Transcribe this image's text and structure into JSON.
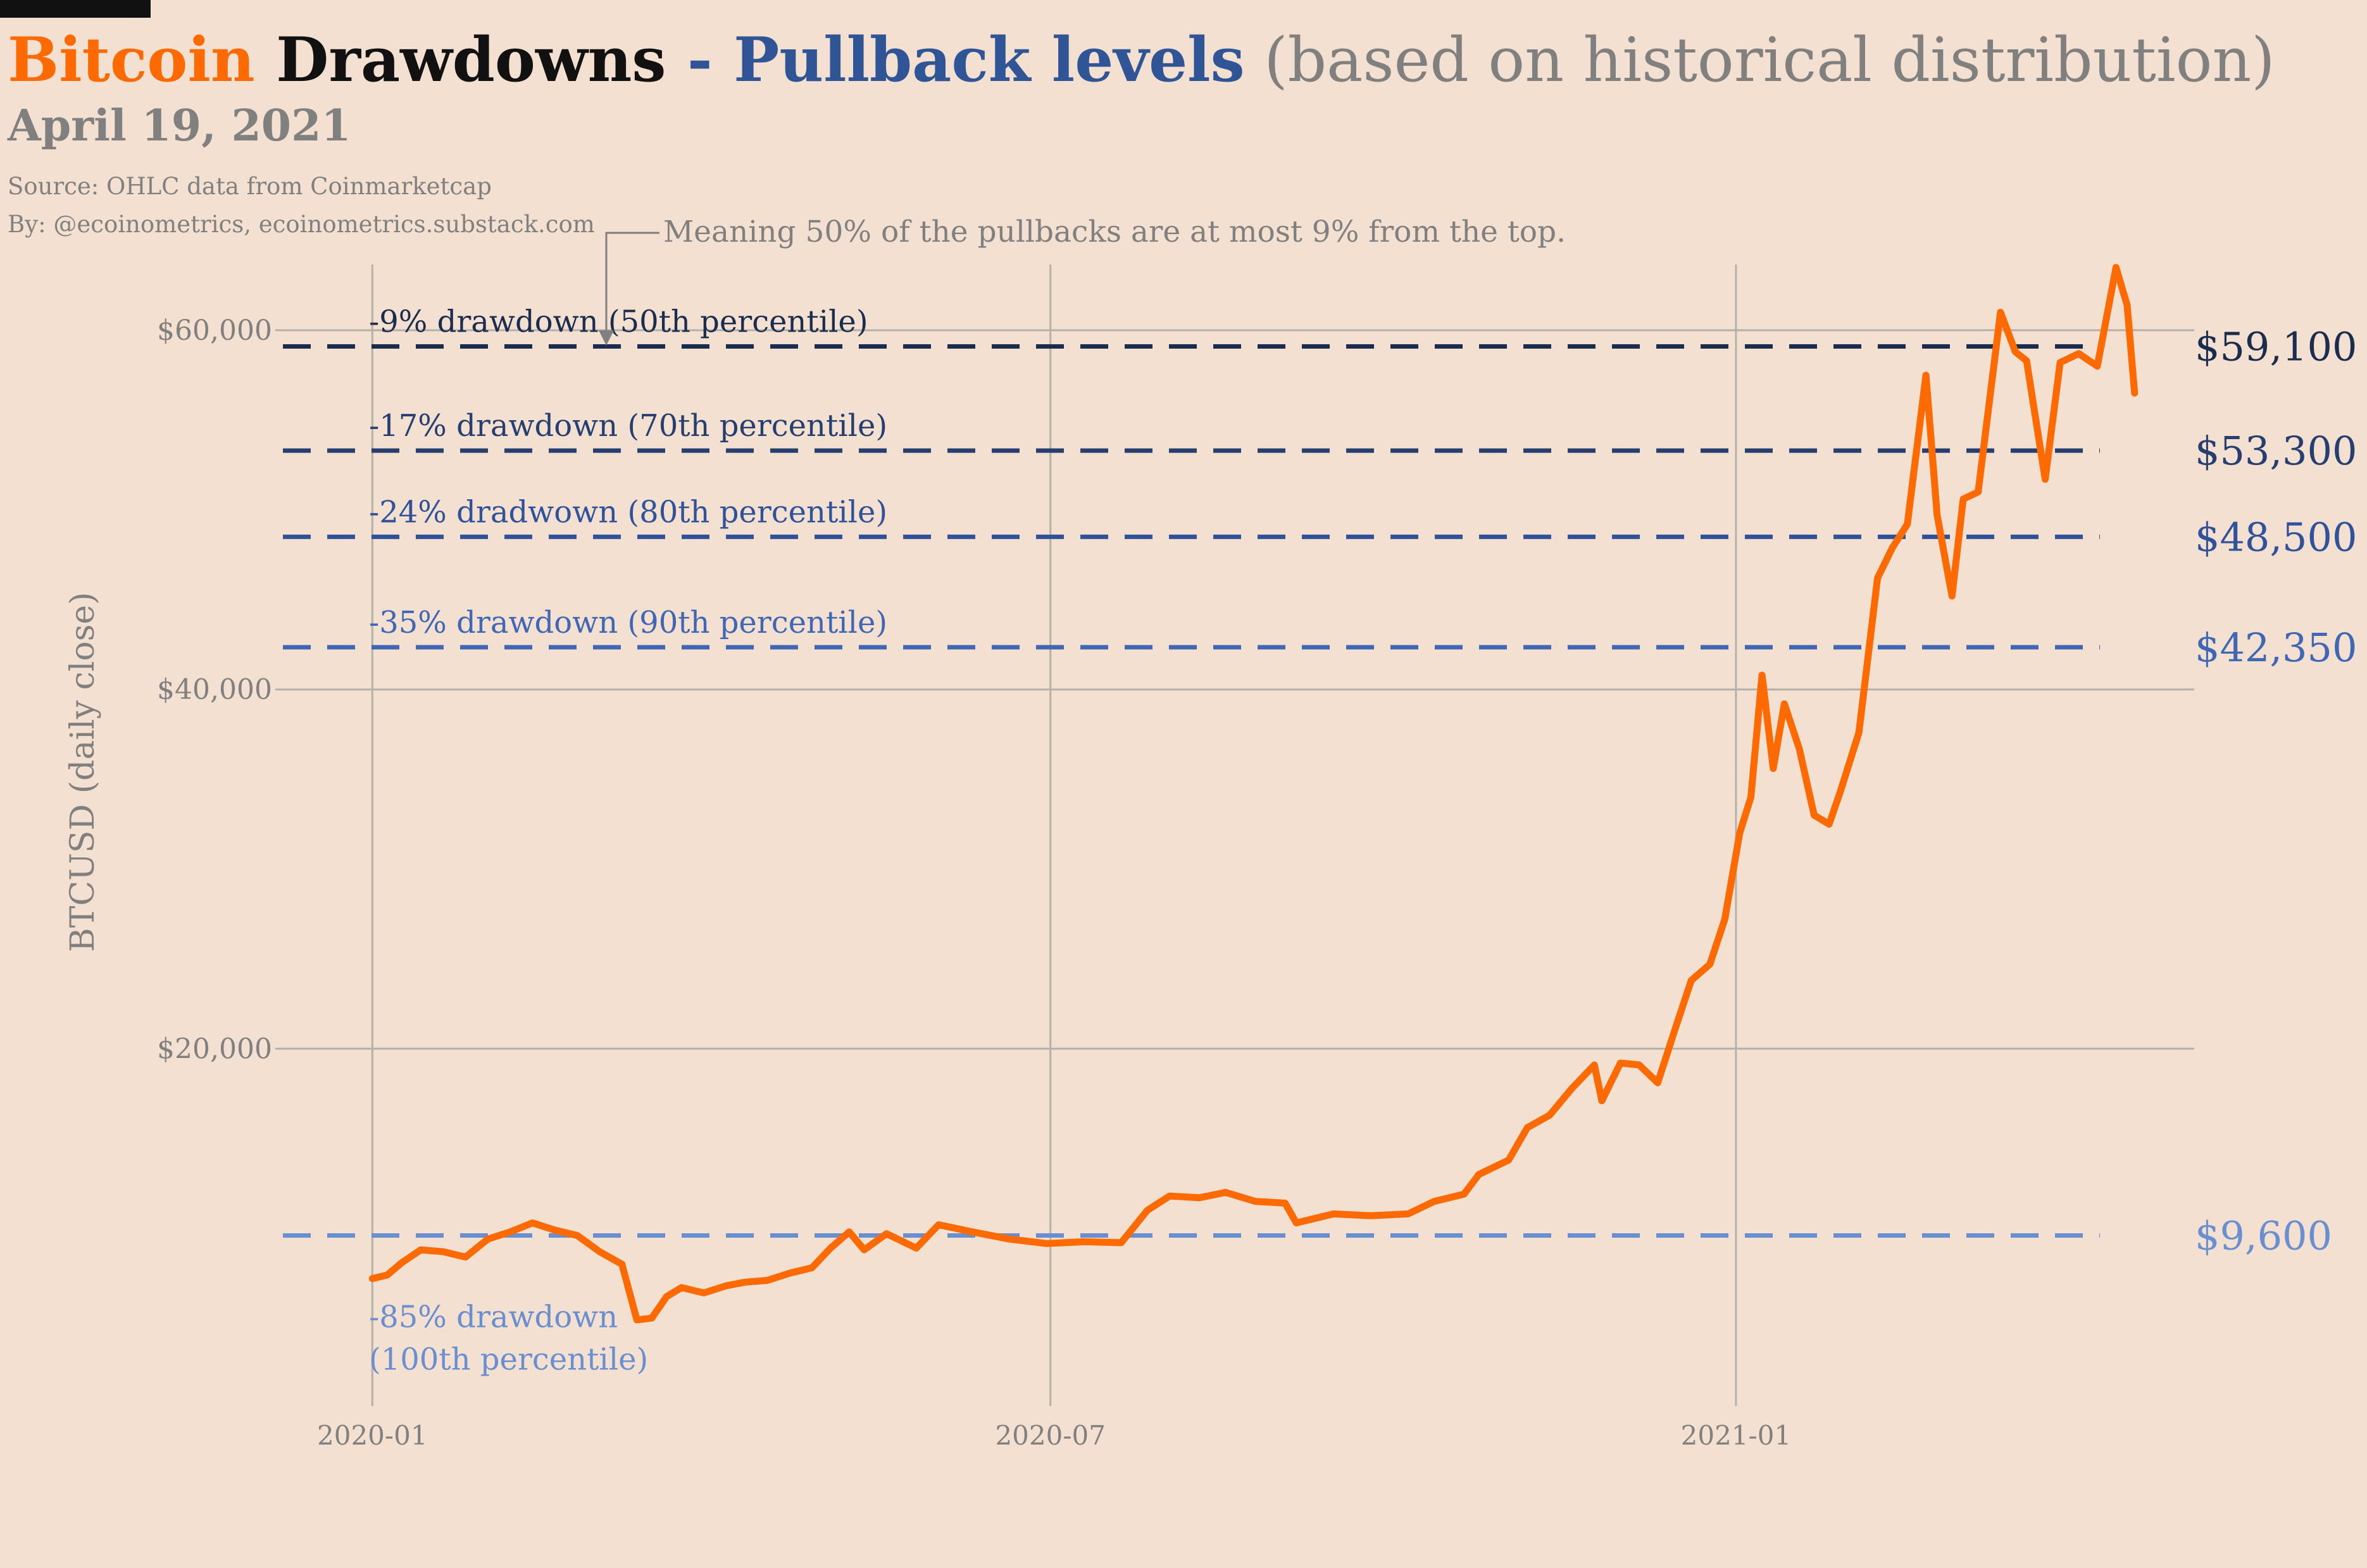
{
  "header": {
    "title_part1": "Bitcoin",
    "title_part2": " Drawdowns",
    "title_part3": " - ",
    "title_part4": "Pullback levels",
    "title_part5": " (based on historical distribution)",
    "date": "April 19, 2021",
    "source": "Source: OHLC data from Coinmarketcap",
    "byline": "By: @ecoinometrics, ecoinometrics.substack.com"
  },
  "colors": {
    "background": "#f3e0d0",
    "bitcoin_orange": "#ff6a00",
    "title_black": "#111111",
    "pullback_blue": "#2f5597",
    "grey_text": "#808080",
    "grid": "#b5b0aa",
    "level_50": "#1b2d4f",
    "level_70": "#263f70",
    "level_80": "#30529a",
    "level_90": "#3f67b5",
    "level_100": "#6a8fd0"
  },
  "chart_data": {
    "type": "line",
    "ylabel": "BTCUSD (daily close)",
    "xlabel": "",
    "ylim": [
      0,
      65000
    ],
    "xlim": [
      "2019-12-08",
      "2021-05-04"
    ],
    "y_ticks": [
      20000,
      40000,
      60000
    ],
    "y_tick_labels": [
      "$20,000",
      "$40,000",
      "$60,000"
    ],
    "x_ticks": [
      "2020-01-01",
      "2020-07-01",
      "2021-01-01"
    ],
    "x_tick_labels": [
      "2020-01",
      "2020-07",
      "2021-01"
    ],
    "grid": true,
    "annotation": "Meaning 50% of the pullbacks are at most 9% from the top.",
    "levels": [
      {
        "value": 59100,
        "value_label": "$59,100",
        "label": "-9% drawdown (50th percentile)",
        "label2": "",
        "color": "#1b2d4f"
      },
      {
        "value": 53300,
        "value_label": "$53,300",
        "label": "-17% drawdown (70th percentile)",
        "label2": "",
        "color": "#263f70"
      },
      {
        "value": 48500,
        "value_label": "$48,500",
        "label": "-24% dradwown (80th percentile)",
        "label2": "",
        "color": "#30529a"
      },
      {
        "value": 42350,
        "value_label": "$42,350",
        "label": "-35% drawdown (90th percentile)",
        "label2": "",
        "color": "#3f67b5"
      },
      {
        "value": 9600,
        "value_label": "$9,600",
        "label": "-85% drawdown",
        "label2": "(100th percentile)",
        "color": "#6a8fd0"
      }
    ],
    "series": [
      {
        "x": [
          "2020-01-01",
          "2020-01-05",
          "2020-01-09",
          "2020-01-14",
          "2020-01-20",
          "2020-01-26",
          "2020-02-01",
          "2020-02-07",
          "2020-02-13",
          "2020-02-19",
          "2020-02-25",
          "2020-03-02",
          "2020-03-08",
          "2020-03-12",
          "2020-03-16",
          "2020-03-20",
          "2020-03-24",
          "2020-03-30",
          "2020-04-05",
          "2020-04-10",
          "2020-04-16",
          "2020-04-22",
          "2020-04-28",
          "2020-05-03",
          "2020-05-08",
          "2020-05-12",
          "2020-05-18",
          "2020-05-26",
          "2020-06-01",
          "2020-06-10",
          "2020-06-20",
          "2020-06-30",
          "2020-07-10",
          "2020-07-20",
          "2020-07-27",
          "2020-08-02",
          "2020-08-10",
          "2020-08-17",
          "2020-08-25",
          "2020-09-02",
          "2020-09-05",
          "2020-09-15",
          "2020-09-25",
          "2020-10-05",
          "2020-10-12",
          "2020-10-20",
          "2020-10-24",
          "2020-11-01",
          "2020-11-06",
          "2020-11-12",
          "2020-11-18",
          "2020-11-24",
          "2020-11-26",
          "2020-12-01",
          "2020-12-06",
          "2020-12-11",
          "2020-12-16",
          "2020-12-20",
          "2020-12-25",
          "2020-12-29",
          "2021-01-02",
          "2021-01-05",
          "2021-01-08",
          "2021-01-11",
          "2021-01-14",
          "2021-01-18",
          "2021-01-22",
          "2021-01-26",
          "2021-01-29",
          "2021-02-03",
          "2021-02-08",
          "2021-02-12",
          "2021-02-16",
          "2021-02-21",
          "2021-02-24",
          "2021-02-28",
          "2021-03-03",
          "2021-03-07",
          "2021-03-13",
          "2021-03-17",
          "2021-03-20",
          "2021-03-25",
          "2021-03-29",
          "2021-04-03",
          "2021-04-08",
          "2021-04-13",
          "2021-04-16",
          "2021-04-18"
        ],
        "y": [
          7200,
          7400,
          8100,
          8800,
          8700,
          8400,
          9400,
          9800,
          10300,
          9900,
          9600,
          8700,
          8000,
          4900,
          5000,
          6200,
          6700,
          6400,
          6800,
          7000,
          7100,
          7500,
          7800,
          8900,
          9800,
          8800,
          9700,
          8900,
          10200,
          9800,
          9400,
          9150,
          9250,
          9200,
          11000,
          11800,
          11700,
          12000,
          11500,
          11400,
          10300,
          10800,
          10700,
          10800,
          11500,
          11900,
          13000,
          13800,
          15600,
          16300,
          17800,
          19100,
          17100,
          19200,
          19100,
          18100,
          21300,
          23800,
          24700,
          27200,
          32000,
          34000,
          40800,
          35600,
          39200,
          36700,
          33000,
          32500,
          34300,
          37600,
          46200,
          47900,
          49200,
          57500,
          49700,
          45200,
          50600,
          51000,
          61000,
          58800,
          58300,
          51700,
          58200,
          58700,
          58000,
          63500,
          61400,
          56500
        ],
        "color": "#ff6a00"
      }
    ]
  }
}
